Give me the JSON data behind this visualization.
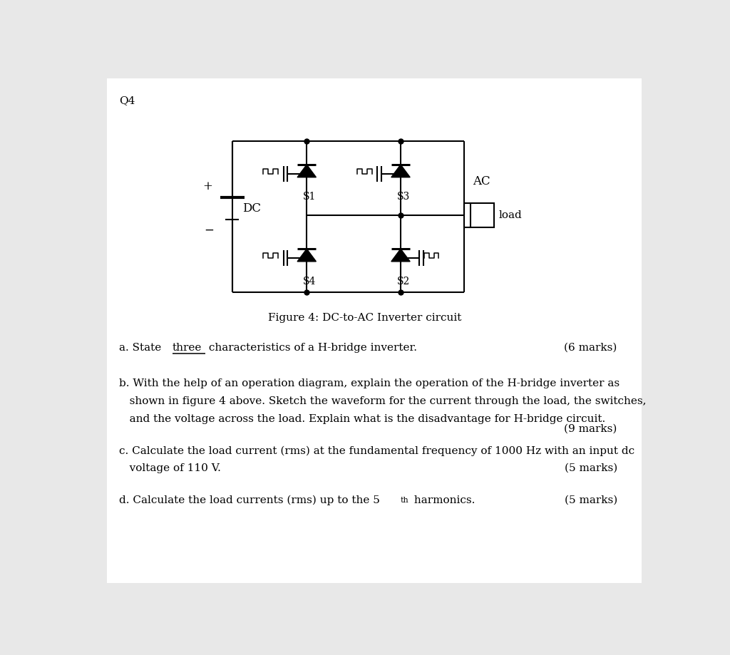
{
  "bg_color": "#e8e8e8",
  "page_bg": "#ffffff",
  "title_q": "Q4",
  "fig_caption": "Figure 4: DC-to-AC Inverter circuit",
  "q_a_marks": "(6 marks)",
  "q_b_marks": "(9 marks)",
  "q_c_marks": "(5 marks)",
  "q_d_marks": "(5 marks)"
}
